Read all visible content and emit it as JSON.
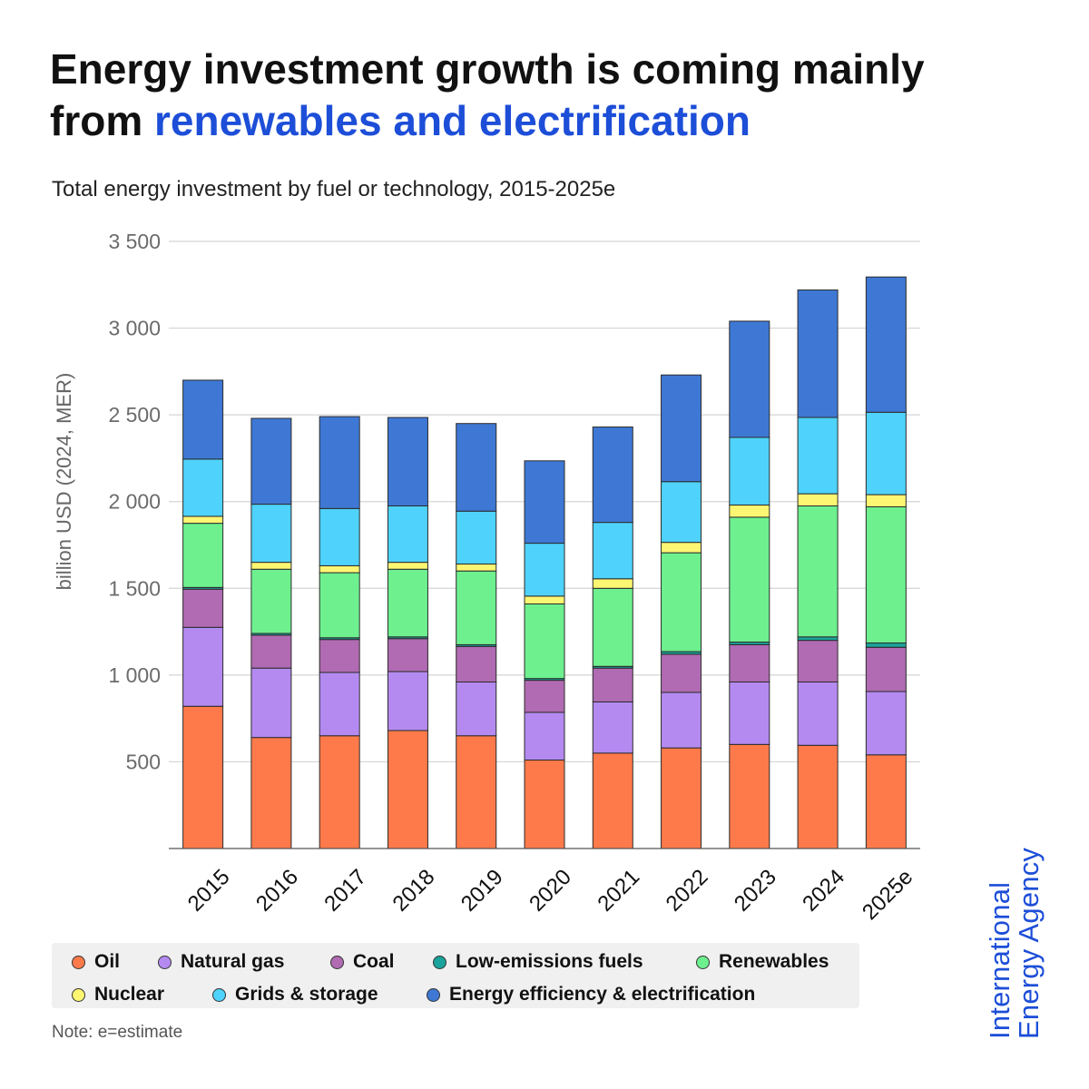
{
  "header": {
    "title_part1": "Energy investment growth is coming mainly from ",
    "title_part2": "renewables and electrification",
    "subtitle": "Total energy investment by fuel or technology, 2015-2025e"
  },
  "colors": {
    "accent": "#1d4ed8",
    "Oil": "#ff7a4a",
    "Natural gas": "#b48af0",
    "Coal": "#b06bb2",
    "Low-emissions fuels": "#1aa39a",
    "Renewables": "#6ef08f",
    "Nuclear": "#fdf672",
    "Grids & storage": "#4fd2fb",
    "Energy efficiency & electrification": "#3e78d4"
  },
  "chart_data": {
    "type": "bar",
    "stacked": true,
    "title": "Total energy investment by fuel or technology, 2015-2025e",
    "xlabel": "",
    "ylabel": "billion USD (2024, MER)",
    "ylim": [
      0,
      3500
    ],
    "yticks": [
      500,
      1000,
      1500,
      2000,
      2500,
      3000,
      3500
    ],
    "ytick_labels": [
      "500",
      "1 000",
      "1 500",
      "2 000",
      "2 500",
      "3 000",
      "3 500"
    ],
    "grid": true,
    "legend_position": "bottom",
    "categories": [
      "2015",
      "2016",
      "2017",
      "2018",
      "2019",
      "2020",
      "2021",
      "2022",
      "2023",
      "2024",
      "2025e"
    ],
    "series": [
      {
        "name": "Oil",
        "values": [
          820,
          640,
          650,
          680,
          650,
          510,
          550,
          580,
          600,
          595,
          540
        ]
      },
      {
        "name": "Natural gas",
        "values": [
          455,
          400,
          365,
          340,
          310,
          275,
          295,
          320,
          360,
          365,
          365
        ]
      },
      {
        "name": "Coal",
        "values": [
          220,
          190,
          190,
          190,
          205,
          185,
          195,
          220,
          215,
          240,
          255
        ]
      },
      {
        "name": "Low-emissions fuels",
        "values": [
          10,
          10,
          10,
          10,
          10,
          10,
          10,
          15,
          15,
          20,
          25
        ]
      },
      {
        "name": "Renewables",
        "values": [
          370,
          370,
          375,
          390,
          425,
          430,
          450,
          570,
          720,
          755,
          785
        ]
      },
      {
        "name": "Nuclear",
        "values": [
          40,
          40,
          40,
          40,
          40,
          45,
          55,
          60,
          70,
          70,
          70
        ]
      },
      {
        "name": "Grids & storage",
        "values": [
          330,
          335,
          330,
          325,
          305,
          305,
          325,
          350,
          390,
          440,
          475
        ]
      },
      {
        "name": "Energy efficiency & electrification",
        "values": [
          455,
          495,
          530,
          510,
          505,
          475,
          550,
          615,
          670,
          735,
          780
        ]
      }
    ]
  },
  "legend": {
    "items": [
      "Oil",
      "Natural gas",
      "Coal",
      "Low-emissions fuels",
      "Renewables",
      "Nuclear",
      "Grids & storage",
      "Energy efficiency & electrification"
    ]
  },
  "note": "Note: e=estimate",
  "logo": {
    "line1": "International",
    "line2": "Energy Agency"
  }
}
